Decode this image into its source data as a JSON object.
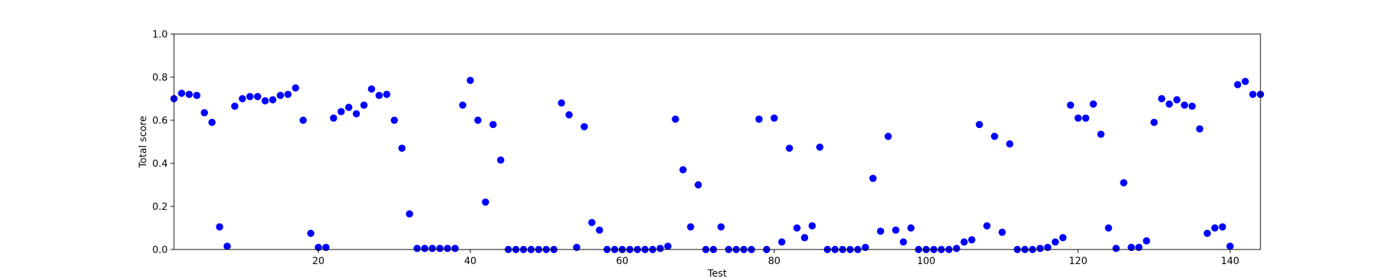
{
  "chart_data": {
    "type": "scatter",
    "title": "",
    "xlabel": "Test",
    "ylabel": "Total score",
    "xlim": [
      1,
      144
    ],
    "ylim": [
      0.0,
      1.0
    ],
    "xticks": [
      20,
      40,
      60,
      80,
      100,
      120,
      140
    ],
    "xtick_labels": [
      "20",
      "40",
      "60",
      "80",
      "100",
      "120",
      "140"
    ],
    "yticks": [
      0.0,
      0.2,
      0.4,
      0.6,
      0.8,
      1.0
    ],
    "ytick_labels": [
      "0.0",
      "0.2",
      "0.4",
      "0.6",
      "0.8",
      "1.0"
    ],
    "grid": false,
    "marker_color": "#0000ff",
    "series": [
      {
        "x": [
          1,
          2,
          3,
          4,
          5,
          6,
          7,
          8,
          9,
          10,
          11,
          12,
          13,
          14,
          15,
          16,
          17,
          18,
          19,
          20,
          21,
          22,
          23,
          24,
          25,
          26,
          27,
          28,
          29,
          30,
          31,
          32,
          33,
          34,
          35,
          36,
          37,
          38,
          39,
          40,
          41,
          42,
          43,
          44,
          45,
          46,
          47,
          48,
          49,
          50,
          51,
          52,
          53,
          54,
          55,
          56,
          57,
          58,
          59,
          60,
          61,
          62,
          63,
          64,
          65,
          66,
          67,
          68,
          69,
          70,
          71,
          72,
          73,
          74,
          75,
          76,
          77,
          78,
          79,
          80,
          81,
          82,
          83,
          84,
          85,
          86,
          87,
          88,
          89,
          90,
          91,
          92,
          93,
          94,
          95,
          96,
          97,
          98,
          99,
          100,
          101,
          102,
          103,
          104,
          105,
          106,
          107,
          108,
          109,
          110,
          111,
          112,
          113,
          114,
          115,
          116,
          117,
          118,
          119,
          120,
          121,
          122,
          123,
          124,
          125,
          126,
          127,
          128,
          129,
          130,
          131,
          132,
          133,
          134,
          135,
          136,
          137,
          138,
          139,
          140,
          141,
          142,
          143,
          144
        ],
        "y": [
          0.7,
          0.725,
          0.72,
          0.715,
          0.635,
          0.59,
          0.105,
          0.015,
          0.665,
          0.7,
          0.71,
          0.71,
          0.69,
          0.695,
          0.715,
          0.72,
          0.75,
          0.6,
          0.075,
          0.01,
          0.01,
          0.61,
          0.64,
          0.66,
          0.63,
          0.67,
          0.745,
          0.715,
          0.72,
          0.6,
          0.47,
          0.165,
          0.005,
          0.005,
          0.005,
          0.005,
          0.005,
          0.005,
          0.67,
          0.785,
          0.6,
          0.22,
          0.58,
          0.415,
          0.0,
          0.0,
          0.0,
          0.0,
          0.0,
          0.0,
          0.0,
          0.68,
          0.625,
          0.01,
          0.57,
          0.125,
          0.09,
          0.0,
          0.0,
          0.0,
          0.0,
          0.0,
          0.0,
          0.0,
          0.005,
          0.015,
          0.605,
          0.37,
          0.105,
          0.3,
          0.0,
          0.0,
          0.105,
          0.0,
          0.0,
          0.0,
          0.0,
          0.605,
          0.0,
          0.61,
          0.035,
          0.47,
          0.1,
          0.055,
          0.11,
          0.475,
          0.0,
          0.0,
          0.0,
          0.0,
          0.0,
          0.01,
          0.33,
          0.085,
          0.525,
          0.09,
          0.035,
          0.1,
          0.0,
          0.0,
          0.0,
          0.0,
          0.0,
          0.005,
          0.035,
          0.045,
          0.58,
          0.11,
          0.525,
          0.08,
          0.49,
          0.0,
          0.0,
          0.0,
          0.005,
          0.01,
          0.035,
          0.055,
          0.67,
          0.61,
          0.61,
          0.675,
          0.535,
          0.1,
          0.005,
          0.31,
          0.01,
          0.01,
          0.04,
          0.59,
          0.7,
          0.675,
          0.695,
          0.67,
          0.665,
          0.56,
          0.075,
          0.1,
          0.105,
          0.015,
          0.765,
          0.78,
          0.72,
          0.72
        ]
      }
    ]
  }
}
